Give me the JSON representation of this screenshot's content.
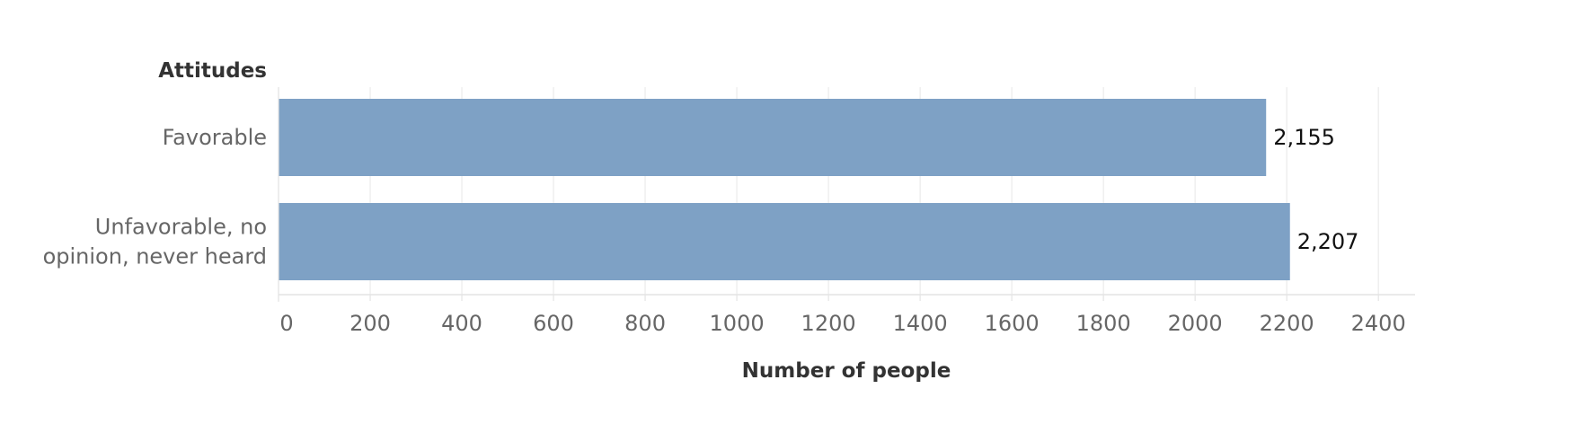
{
  "chart_data": {
    "type": "bar",
    "orientation": "horizontal",
    "category_header": "Attitudes",
    "categories": [
      [
        "Favorable"
      ],
      [
        "Unfavorable, no",
        "opinion, never heard"
      ]
    ],
    "values": [
      2155,
      2207
    ],
    "value_labels": [
      "2,155",
      "2,207"
    ],
    "xlabel": "Number of people",
    "xlim": [
      0,
      2480
    ],
    "xticks": [
      0,
      200,
      400,
      600,
      800,
      1000,
      1200,
      1400,
      1600,
      1800,
      2000,
      2200,
      2400
    ],
    "grid": true,
    "legend": "none",
    "bar_color": "#7EA1C5",
    "grid_color": "#EBEBEB"
  }
}
